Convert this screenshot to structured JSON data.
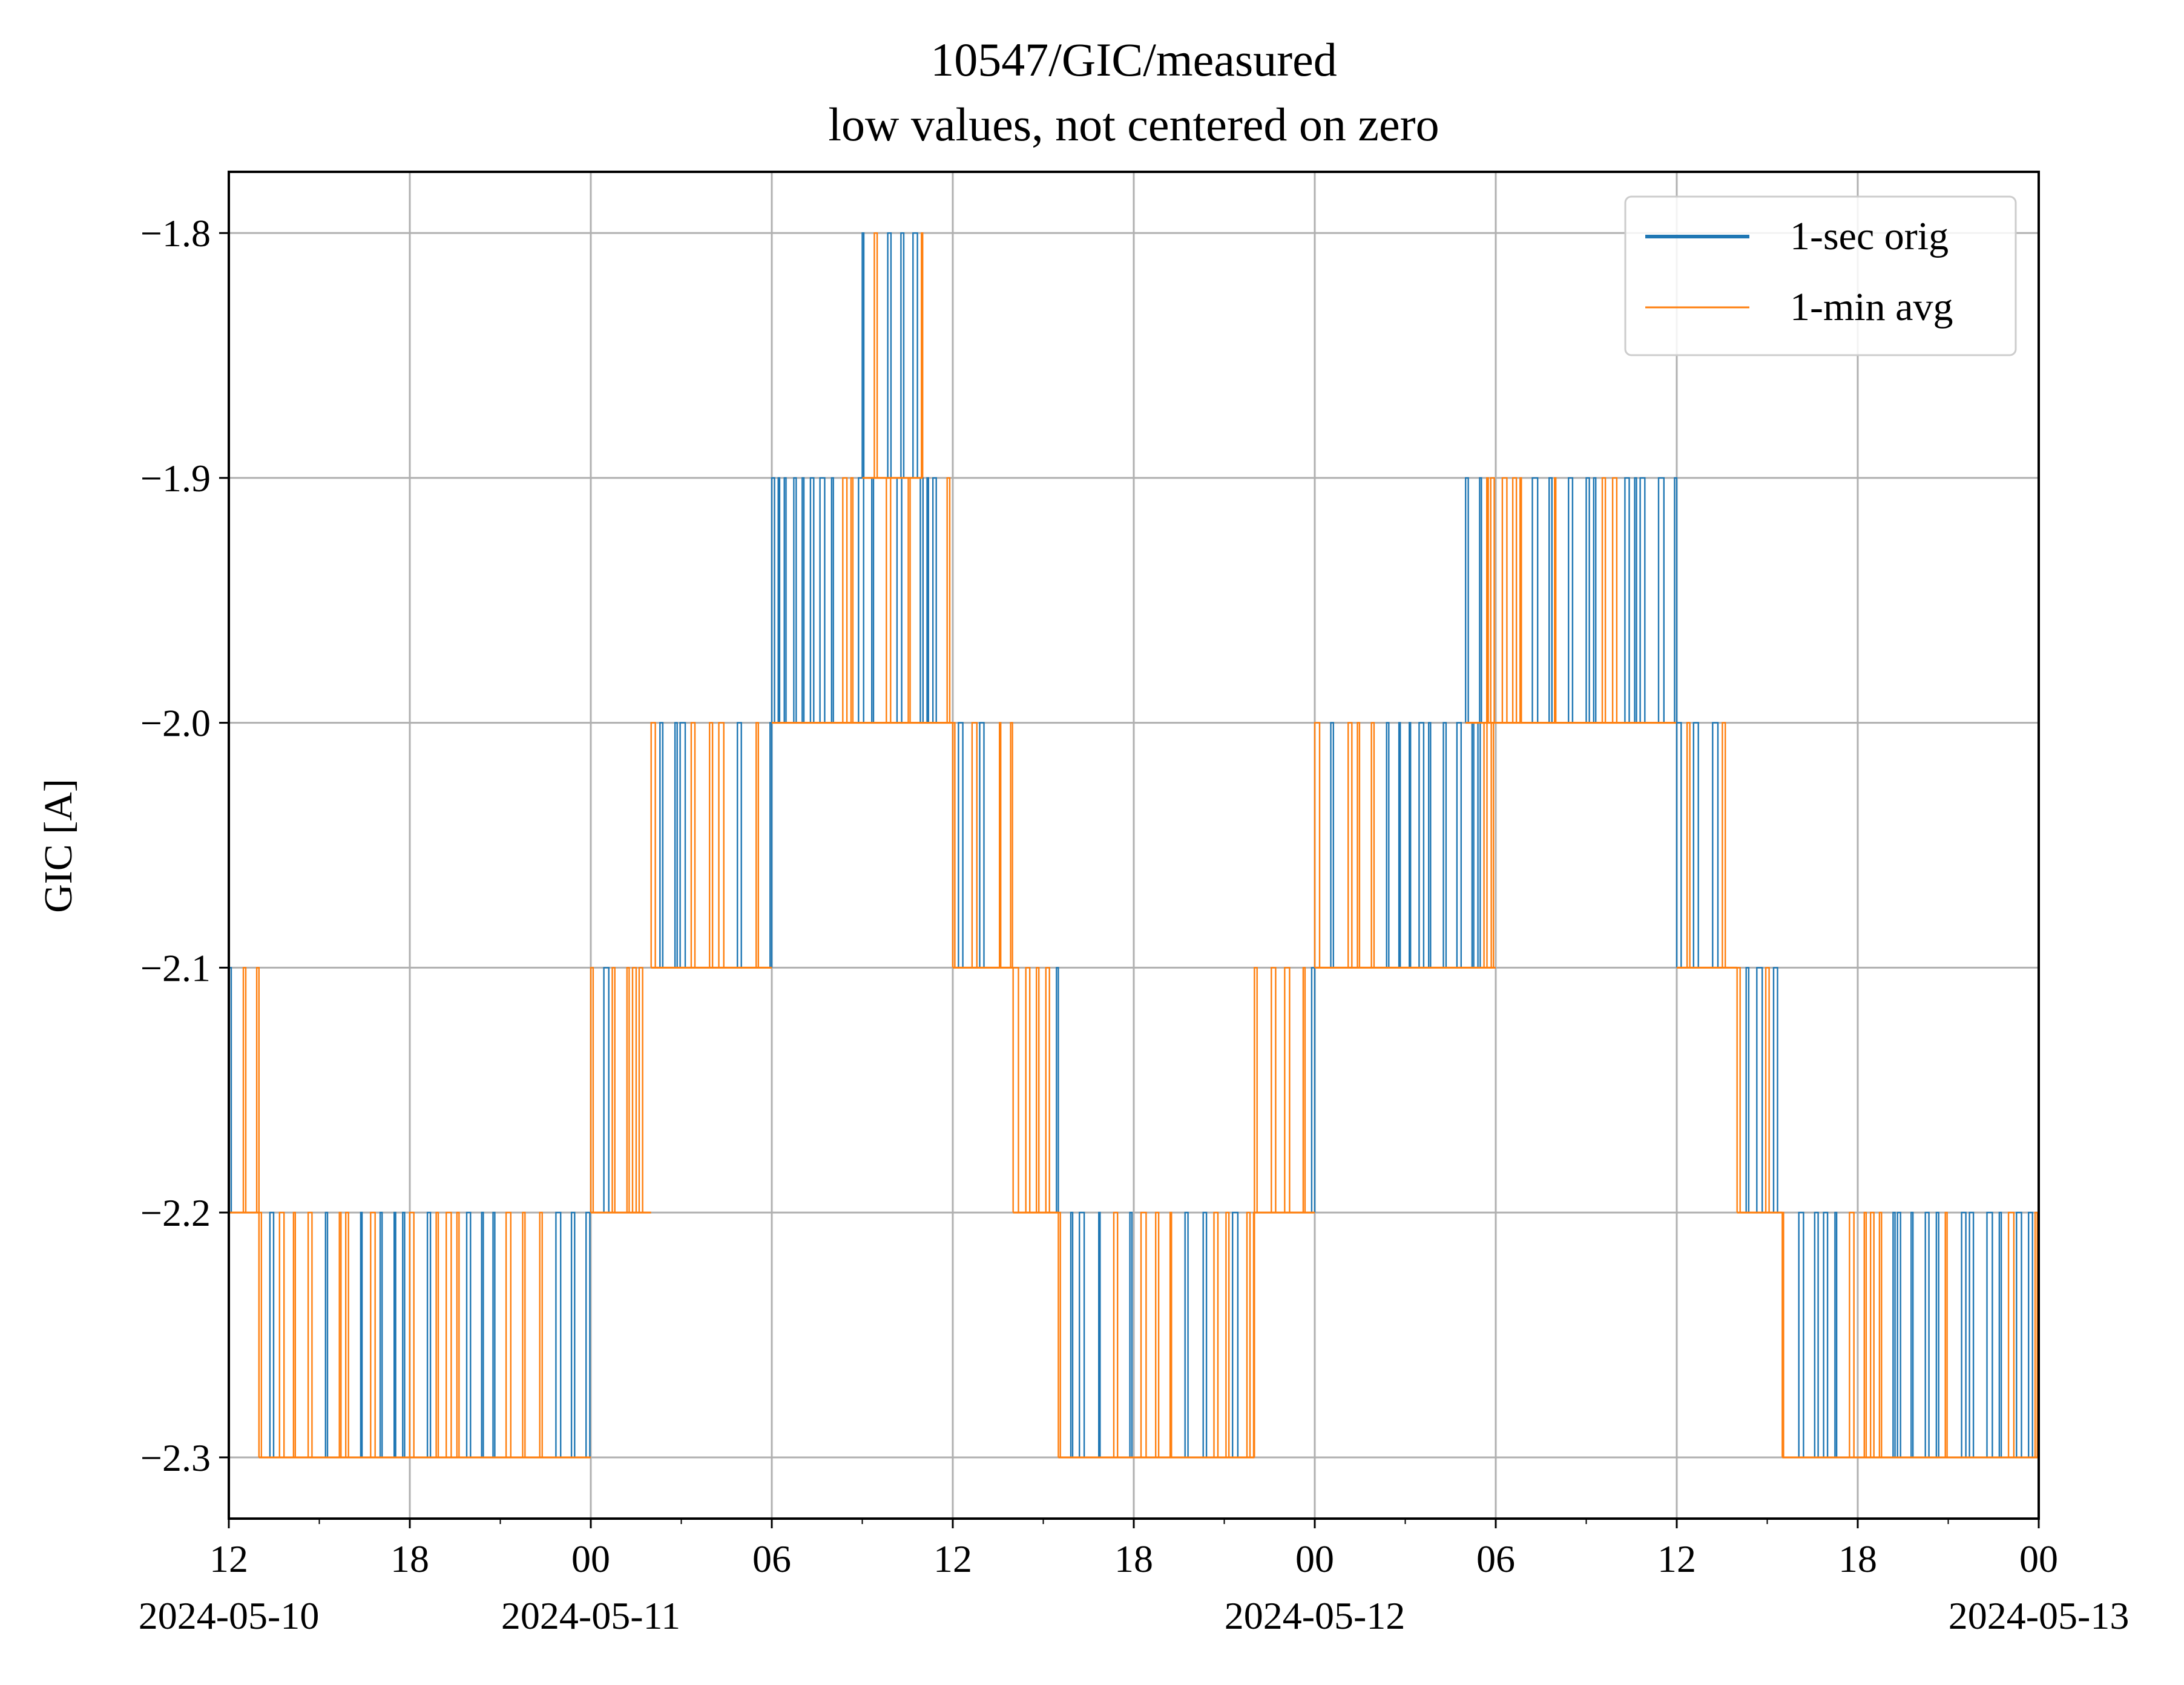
{
  "chart_data": {
    "type": "line",
    "title": "10547/GIC/measured",
    "subtitle": "low values, not centered on zero",
    "xlabel": "",
    "ylabel": "GIC [A]",
    "ylim": [
      -2.325,
      -1.775
    ],
    "xlim": [
      "2024-05-10 12:00",
      "2024-05-13 00:00"
    ],
    "grid": true,
    "legend_position": "top-right",
    "y_ticks": [
      "−1.8",
      "−1.9",
      "−2.0",
      "−2.1",
      "−2.2",
      "−2.3"
    ],
    "x_ticks": [
      {
        "t": "2024-05-10 12:00",
        "label": "12",
        "date": "2024-05-10"
      },
      {
        "t": "2024-05-10 18:00",
        "label": "18",
        "date": ""
      },
      {
        "t": "2024-05-11 00:00",
        "label": "00",
        "date": "2024-05-11"
      },
      {
        "t": "2024-05-11 06:00",
        "label": "06",
        "date": ""
      },
      {
        "t": "2024-05-11 12:00",
        "label": "12",
        "date": ""
      },
      {
        "t": "2024-05-11 18:00",
        "label": "18",
        "date": ""
      },
      {
        "t": "2024-05-12 00:00",
        "label": "00",
        "date": "2024-05-12"
      },
      {
        "t": "2024-05-12 06:00",
        "label": "06",
        "date": ""
      },
      {
        "t": "2024-05-12 12:00",
        "label": "12",
        "date": ""
      },
      {
        "t": "2024-05-12 18:00",
        "label": "18",
        "date": ""
      },
      {
        "t": "2024-05-13 00:00",
        "label": "00",
        "date": "2024-05-13"
      }
    ],
    "series": [
      {
        "name": "1-sec orig",
        "color": "#1f77b4"
      },
      {
        "name": "1-min avg",
        "color": "#ff7f0e"
      }
    ],
    "levels": [
      {
        "start": "2024-05-10 12:00",
        "end": "2024-05-10 13:00",
        "low": -2.2,
        "high": -2.1
      },
      {
        "start": "2024-05-10 13:00",
        "end": "2024-05-11 00:00",
        "low": -2.3,
        "high": -2.2
      },
      {
        "start": "2024-05-11 00:00",
        "end": "2024-05-11 02:00",
        "low": -2.2,
        "high": -2.1
      },
      {
        "start": "2024-05-11 02:00",
        "end": "2024-05-11 06:00",
        "low": -2.1,
        "high": -2.0
      },
      {
        "start": "2024-05-11 06:00",
        "end": "2024-05-11 12:00",
        "low": -2.0,
        "high": -1.9
      },
      {
        "start": "2024-05-11 09:00",
        "end": "2024-05-11 11:00",
        "low": -1.9,
        "high": -1.8
      },
      {
        "start": "2024-05-11 12:00",
        "end": "2024-05-11 14:00",
        "low": -2.1,
        "high": -2.0
      },
      {
        "start": "2024-05-11 14:00",
        "end": "2024-05-11 15:30",
        "low": -2.2,
        "high": -2.1
      },
      {
        "start": "2024-05-11 15:30",
        "end": "2024-05-11 22:00",
        "low": -2.3,
        "high": -2.2
      },
      {
        "start": "2024-05-11 22:00",
        "end": "2024-05-12 00:00",
        "low": -2.2,
        "high": -2.1
      },
      {
        "start": "2024-05-12 00:00",
        "end": "2024-05-12 06:00",
        "low": -2.1,
        "high": -2.0
      },
      {
        "start": "2024-05-12 05:00",
        "end": "2024-05-12 12:00",
        "low": -2.0,
        "high": -1.9
      },
      {
        "start": "2024-05-12 12:00",
        "end": "2024-05-12 14:00",
        "low": -2.1,
        "high": -2.0
      },
      {
        "start": "2024-05-12 14:00",
        "end": "2024-05-12 15:30",
        "low": -2.2,
        "high": -2.1
      },
      {
        "start": "2024-05-12 15:30",
        "end": "2024-05-13 00:00",
        "low": -2.3,
        "high": -2.2
      }
    ]
  }
}
